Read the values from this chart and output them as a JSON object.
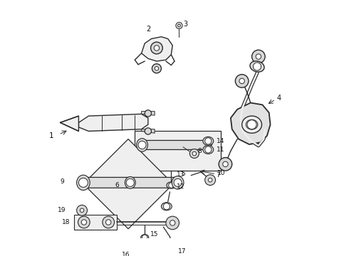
{
  "bg_color": "#ffffff",
  "line_color": "#2a2a2a",
  "label_color": "#111111",
  "figsize": [
    4.9,
    3.6
  ],
  "dpi": 100,
  "lw_main": 1.0,
  "lw_thin": 0.7,
  "gray_fill": "#d8d8d8",
  "light_fill": "#efefef",
  "label_fs": 6.5
}
